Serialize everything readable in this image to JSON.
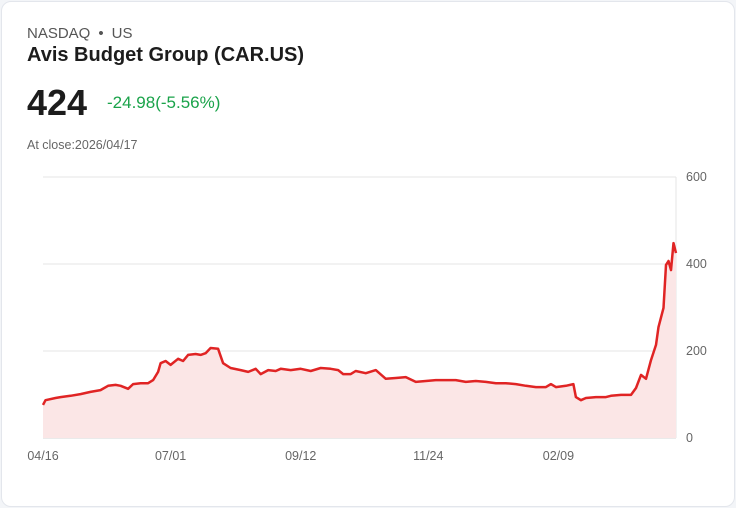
{
  "header": {
    "exchange": "NASDAQ",
    "separator": "•",
    "region": "US",
    "title": "Avis Budget Group (CAR.US)",
    "price": "424",
    "change": "-24.98(-5.56%)",
    "close_label": "At close:2026/04/17"
  },
  "colors": {
    "line": "#e02424",
    "fill": "#fbe6e6",
    "change": "#1aa34a",
    "grid": "#e5e5e5"
  },
  "chart_data": {
    "type": "area",
    "title": "Avis Budget Group (CAR.US)",
    "xlabel": "",
    "ylabel": "",
    "ylim": [
      0,
      600
    ],
    "yticks": [
      0,
      200,
      400,
      600
    ],
    "xticks": [
      {
        "x": 0,
        "label": "04/16"
      },
      {
        "x": 51,
        "label": "07/01"
      },
      {
        "x": 103,
        "label": "09/12"
      },
      {
        "x": 154,
        "label": "11/24"
      },
      {
        "x": 206,
        "label": "02/09"
      }
    ],
    "xlim": [
      0,
      253
    ],
    "grid": true,
    "legend": "none",
    "points": [
      [
        0,
        76
      ],
      [
        1,
        87
      ],
      [
        5,
        92
      ],
      [
        7,
        94
      ],
      [
        11,
        97
      ],
      [
        15,
        101
      ],
      [
        19,
        106
      ],
      [
        23,
        110
      ],
      [
        26,
        120
      ],
      [
        29,
        122
      ],
      [
        31,
        120
      ],
      [
        34,
        113
      ],
      [
        36,
        124
      ],
      [
        39,
        126
      ],
      [
        42,
        126
      ],
      [
        44,
        133
      ],
      [
        46,
        152
      ],
      [
        47,
        172
      ],
      [
        49,
        177
      ],
      [
        51,
        168
      ],
      [
        54,
        182
      ],
      [
        56,
        177
      ],
      [
        58,
        191
      ],
      [
        61,
        193
      ],
      [
        63,
        191
      ],
      [
        65,
        195
      ],
      [
        67,
        207
      ],
      [
        70,
        205
      ],
      [
        72,
        172
      ],
      [
        75,
        161
      ],
      [
        79,
        156
      ],
      [
        82,
        152
      ],
      [
        85,
        159
      ],
      [
        87,
        147
      ],
      [
        90,
        156
      ],
      [
        93,
        154
      ],
      [
        95,
        159
      ],
      [
        99,
        156
      ],
      [
        103,
        159
      ],
      [
        107,
        154
      ],
      [
        111,
        161
      ],
      [
        115,
        159
      ],
      [
        118,
        156
      ],
      [
        120,
        147
      ],
      [
        123,
        147
      ],
      [
        125,
        154
      ],
      [
        129,
        149
      ],
      [
        133,
        156
      ],
      [
        137,
        136
      ],
      [
        141,
        138
      ],
      [
        145,
        140
      ],
      [
        149,
        129
      ],
      [
        153,
        131
      ],
      [
        157,
        133
      ],
      [
        161,
        133
      ],
      [
        165,
        133
      ],
      [
        169,
        129
      ],
      [
        173,
        131
      ],
      [
        177,
        129
      ],
      [
        181,
        126
      ],
      [
        185,
        126
      ],
      [
        189,
        124
      ],
      [
        193,
        120
      ],
      [
        197,
        117
      ],
      [
        201,
        117
      ],
      [
        203,
        124
      ],
      [
        205,
        117
      ],
      [
        209,
        120
      ],
      [
        212,
        124
      ],
      [
        213,
        94
      ],
      [
        215,
        87
      ],
      [
        217,
        92
      ],
      [
        221,
        94
      ],
      [
        225,
        94
      ],
      [
        227,
        97
      ],
      [
        231,
        99
      ],
      [
        235,
        99
      ],
      [
        237,
        115
      ],
      [
        239,
        145
      ],
      [
        241,
        136
      ],
      [
        243,
        179
      ],
      [
        245,
        214
      ],
      [
        246,
        255
      ],
      [
        248,
        299
      ],
      [
        249,
        398
      ],
      [
        250,
        407
      ],
      [
        251,
        386
      ],
      [
        252,
        448
      ],
      [
        253,
        425
      ]
    ]
  }
}
